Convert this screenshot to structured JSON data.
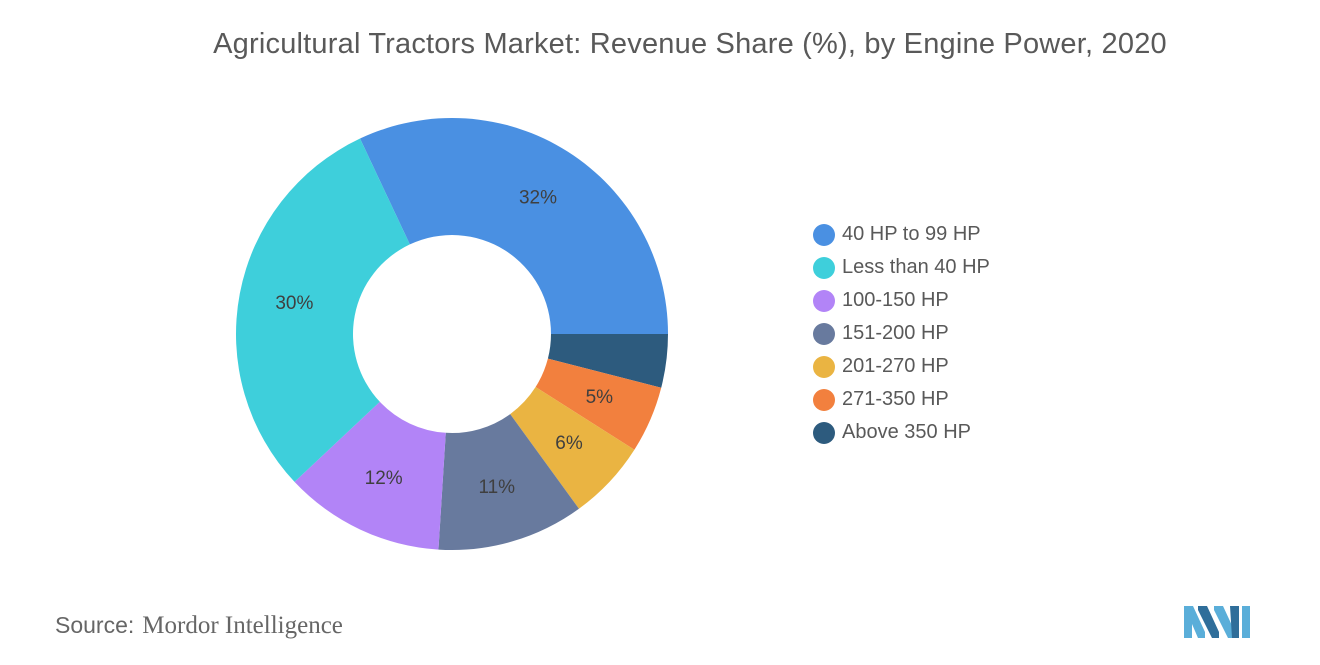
{
  "chart_data": {
    "type": "pie",
    "donut": true,
    "title": "Agricultural Tractors Market: Revenue Share (%), by Engine Power, 2020",
    "legend_placement": "right",
    "slices": [
      {
        "name": "40 HP to 99 HP",
        "value": 32,
        "label": "32%",
        "color": "#4a90e2"
      },
      {
        "name": "Above 350 HP",
        "value": 4,
        "label": "",
        "color": "#2d5b7e"
      },
      {
        "name": "271-350 HP",
        "value": 5,
        "label": "5%",
        "color": "#f2803e"
      },
      {
        "name": "201-270 HP",
        "value": 6,
        "label": "6%",
        "color": "#eab442"
      },
      {
        "name": "151-200 HP",
        "value": 11,
        "label": "11%",
        "color": "#687a9e"
      },
      {
        "name": "100-150 HP",
        "value": 12,
        "label": "12%",
        "color": "#b284f7"
      },
      {
        "name": "Less than 40 HP",
        "value": 30,
        "label": "30%",
        "color": "#3ecfdb"
      }
    ]
  },
  "legend": [
    {
      "label": "40 HP to 99 HP",
      "color": "#4a90e2"
    },
    {
      "label": "Less than 40 HP",
      "color": "#3ecfdb"
    },
    {
      "label": "100-150 HP",
      "color": "#b284f7"
    },
    {
      "label": "151-200 HP",
      "color": "#687a9e"
    },
    {
      "label": "201-270 HP",
      "color": "#eab442"
    },
    {
      "label": "271-350 HP",
      "color": "#f2803e"
    },
    {
      "label": "Above 350 HP",
      "color": "#2d5b7e"
    }
  ],
  "source": {
    "prefix": "Source:",
    "name": "Mordor Intelligence"
  },
  "logo": {
    "icon": "mordor-intelligence-logo",
    "colors": [
      "#5aaed9",
      "#2f6e9a"
    ]
  }
}
